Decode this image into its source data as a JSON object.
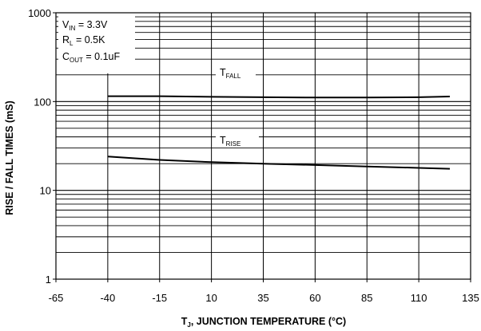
{
  "chart_data": {
    "type": "line",
    "xlabel": {
      "main": "T",
      "sub": "J",
      "rest": ", JUNCTION TEMPERATURE (°C)"
    },
    "ylabel": "RISE / FALL TIMES (mS)",
    "xlim": [
      -65,
      135
    ],
    "ylim": [
      1,
      1000
    ],
    "y_scale": "log",
    "grid": true,
    "x_ticks": [
      -65,
      -40,
      -15,
      10,
      35,
      60,
      85,
      110,
      135
    ],
    "x_tick_labels": [
      "-65",
      "-40",
      "-15",
      "10",
      "35",
      "60",
      "85",
      "110",
      "135"
    ],
    "y_ticks": [
      1,
      10,
      100,
      1000
    ],
    "y_tick_labels": [
      "1",
      "10",
      "100",
      "1000"
    ],
    "conditions": [
      {
        "main": "V",
        "sub": "IN",
        "rest": " = 3.3V"
      },
      {
        "main": "R",
        "sub": "L",
        "rest": " = 0.5K"
      },
      {
        "main": "C",
        "sub": "OUT",
        "rest": " = 0.1uF"
      }
    ],
    "series": [
      {
        "name": {
          "main": "T",
          "sub": "FALL"
        },
        "color": "#000000",
        "x": [
          -40,
          -15,
          10,
          35,
          60,
          85,
          110,
          125
        ],
        "y": [
          115,
          115,
          113,
          112,
          111,
          111,
          112,
          114
        ]
      },
      {
        "name": {
          "main": "T",
          "sub": "RISE"
        },
        "color": "#000000",
        "x": [
          -40,
          -15,
          10,
          35,
          60,
          85,
          110,
          125
        ],
        "y": [
          24,
          22,
          20.8,
          20,
          19.3,
          18.6,
          17.9,
          17.5
        ]
      }
    ]
  }
}
